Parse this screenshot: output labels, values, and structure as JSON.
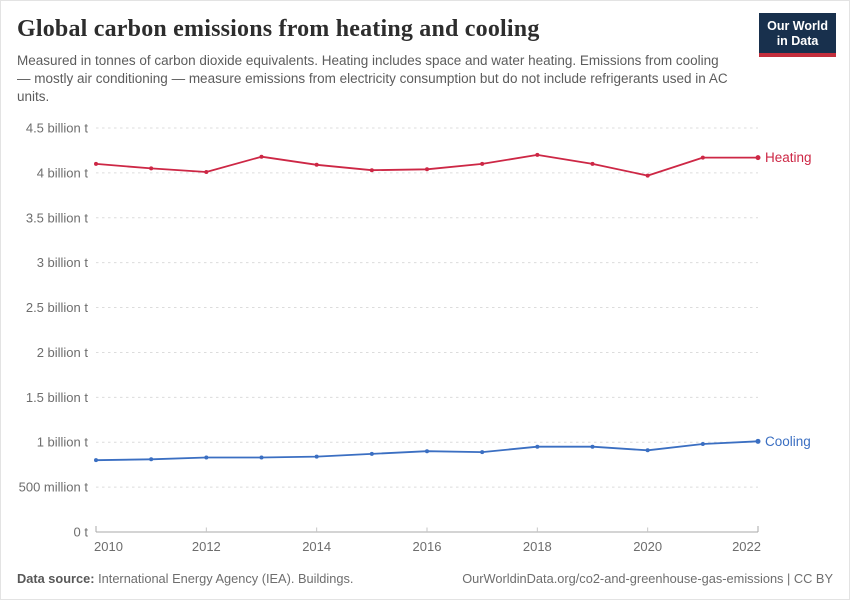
{
  "header": {
    "title": "Global carbon emissions from heating and cooling",
    "subtitle": "Measured in tonnes of carbon dioxide equivalents. Heating includes space and water heating. Emissions from cooling — mostly air conditioning — measure emissions from electricity consumption but do not include refrigerants used in AC units.",
    "logo": {
      "line1": "Our World",
      "line2": "in Data",
      "bg_color": "#18304d",
      "accent_color": "#c32e3c"
    }
  },
  "chart_data": {
    "type": "line",
    "title": "Global carbon emissions from heating and cooling",
    "x": [
      2010,
      2011,
      2012,
      2013,
      2014,
      2015,
      2016,
      2017,
      2018,
      2019,
      2020,
      2021,
      2022
    ],
    "series": [
      {
        "name": "Heating",
        "color": "#cd2745",
        "values": [
          4.1,
          4.05,
          4.01,
          4.18,
          4.09,
          4.03,
          4.04,
          4.1,
          4.2,
          4.1,
          3.97,
          4.17,
          4.17
        ]
      },
      {
        "name": "Cooling",
        "color": "#3b6fc2",
        "values": [
          0.8,
          0.81,
          0.83,
          0.83,
          0.84,
          0.87,
          0.9,
          0.89,
          0.95,
          0.95,
          0.91,
          0.98,
          1.01
        ]
      }
    ],
    "unit": "billion tonnes of CO2 equivalents",
    "xlabel": "",
    "ylabel": "",
    "ylim": [
      0,
      4.5
    ],
    "xlim": [
      2010,
      2022
    ],
    "grid": "horizontal-dashed",
    "legend_position": "end-of-line",
    "yticks": [
      {
        "value": 0,
        "label": "0 t"
      },
      {
        "value": 0.5,
        "label": "500 million t"
      },
      {
        "value": 1,
        "label": "1 billion t"
      },
      {
        "value": 1.5,
        "label": "1.5 billion t"
      },
      {
        "value": 2,
        "label": "2 billion t"
      },
      {
        "value": 2.5,
        "label": "2.5 billion t"
      },
      {
        "value": 3,
        "label": "3 billion t"
      },
      {
        "value": 3.5,
        "label": "3.5 billion t"
      },
      {
        "value": 4,
        "label": "4 billion t"
      },
      {
        "value": 4.5,
        "label": "4.5 billion t"
      }
    ],
    "xticks": [
      2010,
      2012,
      2014,
      2016,
      2018,
      2020,
      2022
    ]
  },
  "footer": {
    "source_label": "Data source:",
    "source_text": " International Energy Agency (IEA). Buildings.",
    "right_text": "OurWorldinData.org/co2-and-greenhouse-gas-emissions | CC BY"
  }
}
